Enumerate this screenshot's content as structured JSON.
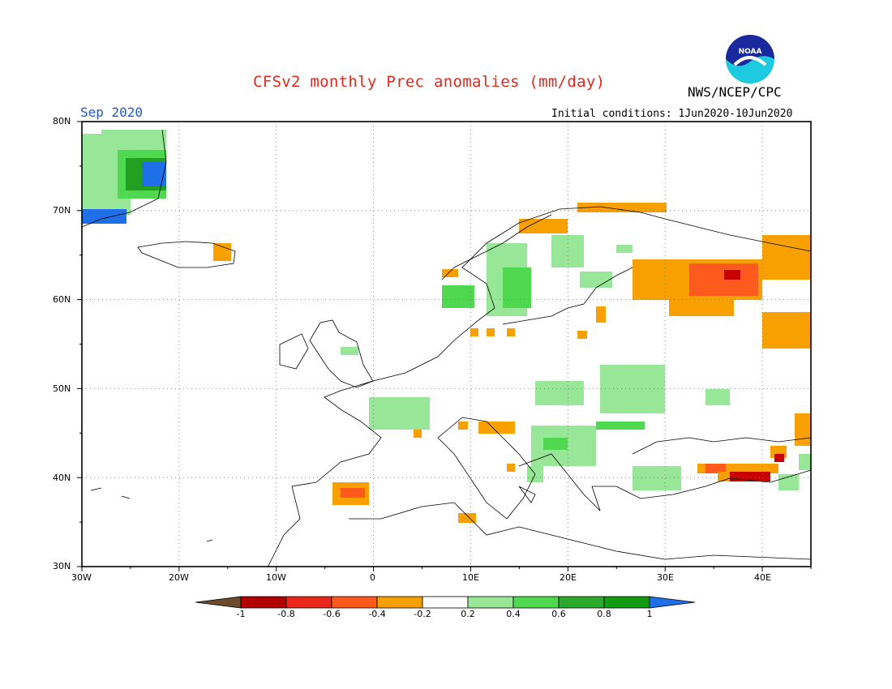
{
  "header": {
    "title": "CFSv2 monthly Prec anomalies (mm/day)",
    "org": "NWS/NCEP/CPC",
    "logo_text": "NOAA",
    "month": "Sep 2020",
    "initial_conditions": "Initial conditions: 1Jun2020-10Jun2020"
  },
  "map": {
    "region": "Europe",
    "lon_range": [
      -30,
      45
    ],
    "lat_range": [
      30,
      80
    ],
    "lat_labels": [
      "80N",
      "70N",
      "60N",
      "50N",
      "40N",
      "30N"
    ],
    "lon_labels": [
      "30W",
      "20W",
      "10W",
      "0",
      "10E",
      "20E",
      "30E",
      "40E"
    ],
    "grid": "dotted"
  },
  "colorbar": {
    "labels": [
      "-1",
      "-0.8",
      "-0.6",
      "-0.4",
      "-0.2",
      "0.2",
      "0.4",
      "0.6",
      "0.8",
      "1"
    ],
    "colors": [
      "#6b4a2e",
      "#b30000",
      "#e8261a",
      "#ff5a1e",
      "#f7a000",
      "#ffffff",
      "#98e698",
      "#50d850",
      "#2aaa2a",
      "#119b11",
      "#1f6fe8"
    ]
  },
  "colors": {
    "dry_weak": "#f7a000",
    "dry_mod": "#ff5a1e",
    "dry_strong": "#c80000",
    "wet_weak": "#98e698",
    "wet_mod": "#50d850",
    "wet_strong": "#22a022",
    "wet_extreme": "#1f6fe8"
  }
}
